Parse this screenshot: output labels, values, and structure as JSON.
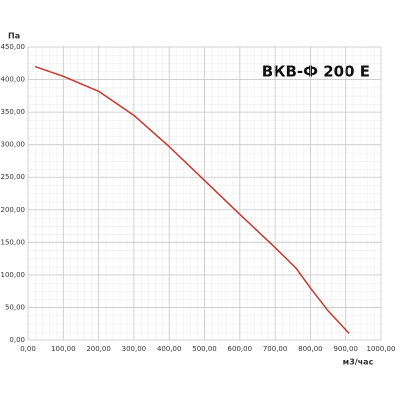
{
  "chart_data": {
    "type": "line",
    "title": "ВКВ-Ф 200 Е",
    "y_label": "Па",
    "x_label": "м3/час",
    "x": [
      20,
      100,
      200,
      300,
      400,
      500,
      600,
      700,
      760,
      800,
      850,
      910
    ],
    "series": [
      {
        "color": "#c8372d",
        "values": [
          420,
          405,
          382,
          345,
          297,
          245,
          193,
          142,
          110,
          80,
          45,
          10
        ]
      }
    ],
    "xlim": [
      0,
      1000
    ],
    "ylim": [
      0,
      450
    ],
    "xticks": [
      {
        "value": 0,
        "label": "0,00"
      },
      {
        "value": 100,
        "label": "100,00"
      },
      {
        "value": 200,
        "label": "200,00"
      },
      {
        "value": 300,
        "label": "300,00"
      },
      {
        "value": 400,
        "label": "400,00"
      },
      {
        "value": 500,
        "label": "500,00"
      },
      {
        "value": 600,
        "label": "600,00"
      },
      {
        "value": 700,
        "label": "700,00"
      },
      {
        "value": 800,
        "label": "800,00"
      },
      {
        "value": 900,
        "label": "900,00"
      },
      {
        "value": 1000,
        "label": "1000,00"
      }
    ],
    "yticks": [
      {
        "value": 0,
        "label": "0,00"
      },
      {
        "value": 50,
        "label": "50,00"
      },
      {
        "value": 100,
        "label": "100,00"
      },
      {
        "value": 150,
        "label": "150,00"
      },
      {
        "value": 200,
        "label": "200,00"
      },
      {
        "value": 250,
        "label": "250,00"
      },
      {
        "value": 300,
        "label": "300,00"
      },
      {
        "value": 350,
        "label": "350,00"
      },
      {
        "value": 400,
        "label": "400,00"
      },
      {
        "value": 450,
        "label": "450,00"
      }
    ],
    "grid": true
  }
}
